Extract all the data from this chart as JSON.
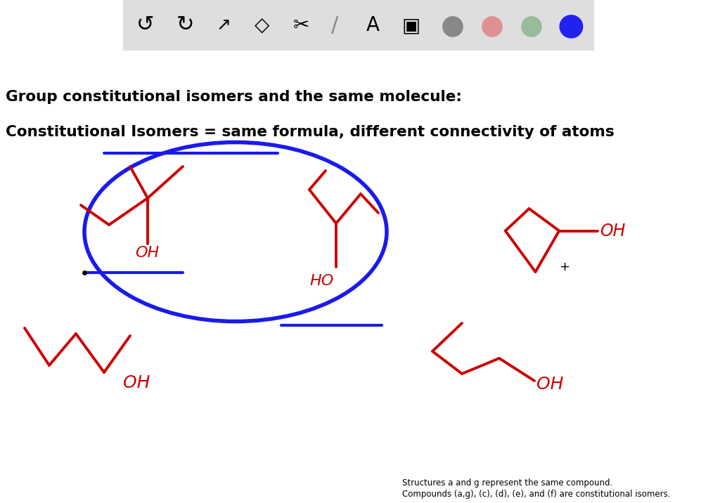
{
  "bg_color": "#ffffff",
  "title_text1": "Group constitutional isomers and the same molecule:",
  "title_text2": "Constitutional Isomers = same formula, different connectivity of atoms",
  "red_color": "#cc0000",
  "blue_color": "#1a1aee",
  "footnote1": "Structures a and g represent the same compound.",
  "footnote2": "Compounds (a,g), (c), (d), (e), and (f) are constitutional isomers.",
  "toolbar_bg": "#dedede"
}
